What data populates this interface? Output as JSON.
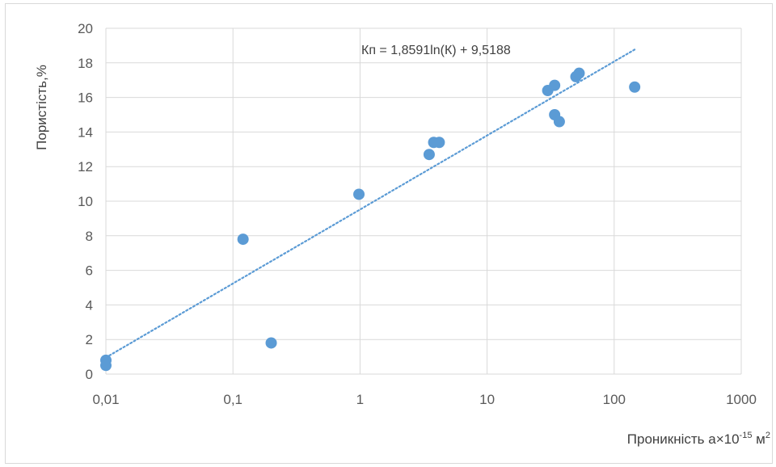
{
  "colors": {
    "point": "#5b9bd5",
    "trendline": "#5b9bd5",
    "gridline": "#d9d9d9",
    "text": "#595959"
  },
  "chart_data": {
    "type": "scatter",
    "title": "",
    "xlabel": {
      "base": "Проникність а×10",
      "exponent": "-15",
      "unit": " м",
      "unit_exponent": "2"
    },
    "ylabel": "Пористість,%",
    "x_scale": "log",
    "xlim": [
      0.01,
      1000
    ],
    "ylim": [
      0,
      20
    ],
    "x_ticks": [
      {
        "value": 0.01,
        "label": "0,01"
      },
      {
        "value": 0.1,
        "label": "0,1"
      },
      {
        "value": 1,
        "label": "1"
      },
      {
        "value": 10,
        "label": "10"
      },
      {
        "value": 100,
        "label": "100"
      },
      {
        "value": 1000,
        "label": "1000"
      }
    ],
    "y_ticks": [
      {
        "value": 0,
        "label": "0"
      },
      {
        "value": 2,
        "label": "2"
      },
      {
        "value": 4,
        "label": "4"
      },
      {
        "value": 6,
        "label": "6"
      },
      {
        "value": 8,
        "label": "8"
      },
      {
        "value": 10,
        "label": "10"
      },
      {
        "value": 12,
        "label": "12"
      },
      {
        "value": 14,
        "label": "14"
      },
      {
        "value": 16,
        "label": "16"
      },
      {
        "value": 18,
        "label": "18"
      },
      {
        "value": 20,
        "label": "20"
      }
    ],
    "grid": true,
    "legend": "none",
    "points": [
      {
        "x": 0.01,
        "y": 0.8
      },
      {
        "x": 0.01,
        "y": 0.5
      },
      {
        "x": 0.12,
        "y": 7.8
      },
      {
        "x": 0.2,
        "y": 1.8
      },
      {
        "x": 0.98,
        "y": 10.4
      },
      {
        "x": 3.5,
        "y": 12.7
      },
      {
        "x": 3.8,
        "y": 13.4
      },
      {
        "x": 4.2,
        "y": 13.4
      },
      {
        "x": 30,
        "y": 16.4
      },
      {
        "x": 34,
        "y": 16.7
      },
      {
        "x": 34,
        "y": 15.0
      },
      {
        "x": 37,
        "y": 14.6
      },
      {
        "x": 50,
        "y": 17.2
      },
      {
        "x": 53,
        "y": 17.4
      },
      {
        "x": 145,
        "y": 16.6
      }
    ],
    "trendline": {
      "type": "logarithmic",
      "a": 1.8591,
      "b": 9.5188,
      "x_range": [
        0.01,
        145
      ],
      "equation_label": "Кп = 1,8591ln(К) + 9,5188"
    }
  }
}
